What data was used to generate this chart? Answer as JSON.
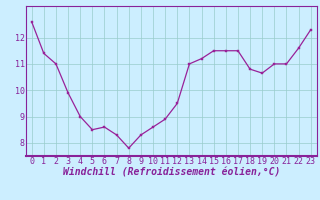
{
  "x": [
    0,
    1,
    2,
    3,
    4,
    5,
    6,
    7,
    8,
    9,
    10,
    11,
    12,
    13,
    14,
    15,
    16,
    17,
    18,
    19,
    20,
    21,
    22,
    23
  ],
  "y": [
    12.6,
    11.4,
    11.0,
    9.9,
    9.0,
    8.5,
    8.6,
    8.3,
    7.8,
    8.3,
    8.6,
    8.9,
    9.5,
    11.0,
    11.2,
    11.5,
    11.5,
    11.5,
    10.8,
    10.65,
    11.0,
    11.0,
    11.6,
    12.3
  ],
  "line_color": "#992299",
  "marker_color": "#992299",
  "bg_color": "#cceeff",
  "grid_color": "#99cccc",
  "xlabel": "Windchill (Refroidissement éolien,°C)",
  "ylim_min": 7.5,
  "ylim_max": 13.2,
  "xlim_min": -0.5,
  "xlim_max": 23.5,
  "yticks": [
    8,
    9,
    10,
    11,
    12
  ],
  "xticks": [
    0,
    1,
    2,
    3,
    4,
    5,
    6,
    7,
    8,
    9,
    10,
    11,
    12,
    13,
    14,
    15,
    16,
    17,
    18,
    19,
    20,
    21,
    22,
    23
  ],
  "tick_label_fontsize": 6.0,
  "xlabel_fontsize": 7.0,
  "tick_color": "#882299",
  "axis_color": "#882299",
  "spine_color": "#882299"
}
